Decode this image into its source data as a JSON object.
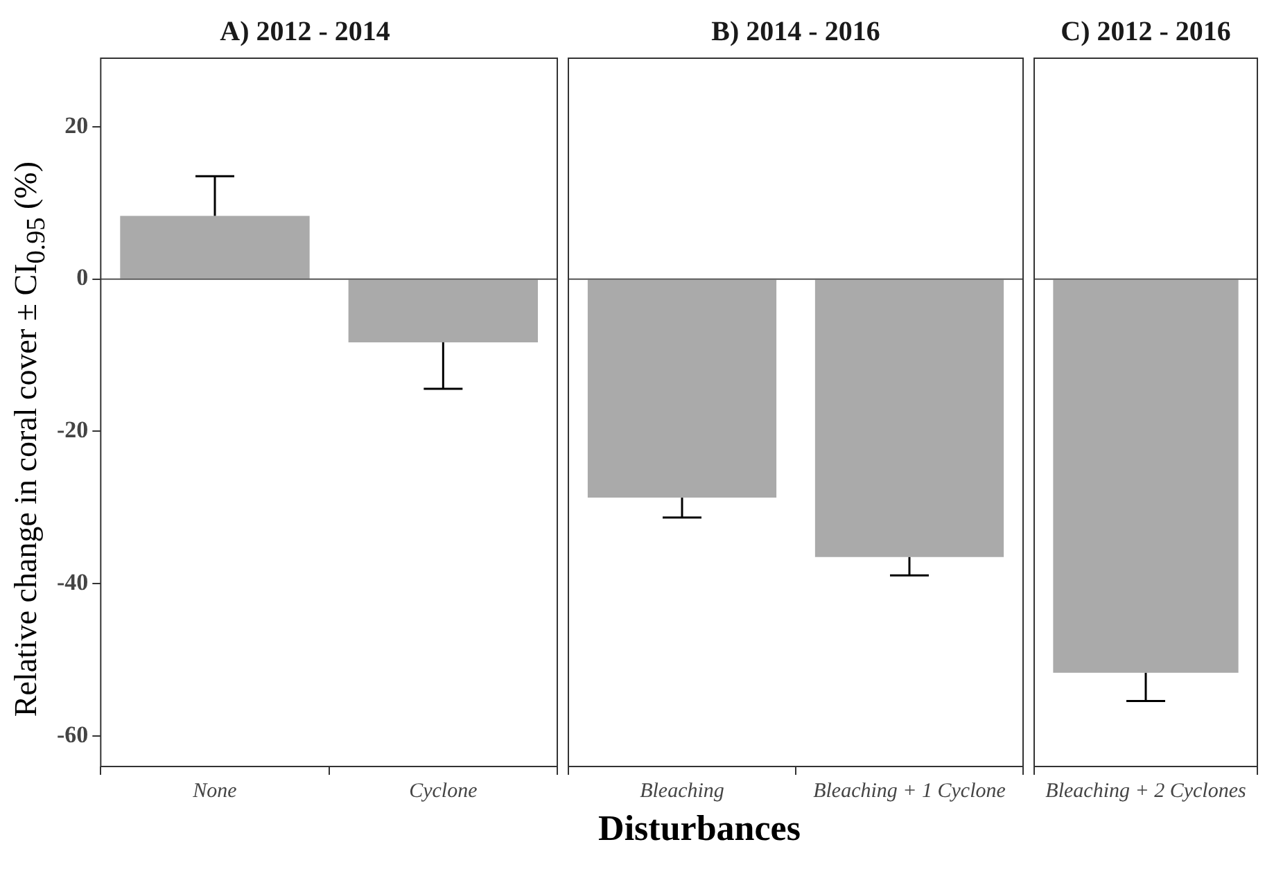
{
  "chart_data": [
    {
      "type": "bar",
      "title": "A) 2012 - 2014",
      "ylabel": "Relative change in coral cover ± CI$_{0.95}$ (%)",
      "categories": [
        "None",
        "Cyclone"
      ],
      "values": [
        8.3,
        -8.3
      ],
      "color": "#aaaaaa",
      "errors": [
        [
          8.3,
          13.5
        ],
        [
          -14.4,
          -8.3
        ]
      ],
      "ylim": [
        -64,
        29
      ],
      "yticks": [
        -60,
        -40,
        -20,
        0,
        20
      ],
      "ref_lines": [
        {
          "axis": "y",
          "value": 0,
          "color": "#555555"
        }
      ]
    },
    {
      "type": "bar",
      "title": "B) 2014 - 2016",
      "xlabel": "Disturbances",
      "categories": [
        "Bleaching",
        "Bleaching + 1 Cyclone"
      ],
      "values": [
        -28.7,
        -36.5
      ],
      "color": "#aaaaaa",
      "errors": [
        [
          -31.3,
          -28.7
        ],
        [
          -38.9,
          -36.5
        ]
      ],
      "ylim": [
        -64,
        29
      ],
      "yticks": [
        -60,
        -40,
        -20,
        0,
        20
      ],
      "tick_labels": "x",
      "ref_lines": [
        {
          "axis": "y",
          "value": 0,
          "color": "#555555"
        }
      ]
    },
    {
      "type": "bar",
      "title": "C) 2012 - 2016",
      "categories": [
        "Bleaching + 2 Cyclones"
      ],
      "values": [
        -51.7
      ],
      "color": "#aaaaaa",
      "errors": [
        [
          -55.4,
          -51.7
        ]
      ],
      "ylim": [
        -64,
        29
      ],
      "yticks": [
        -60,
        -40,
        -20,
        0,
        20
      ],
      "tick_labels": "x",
      "ref_lines": [
        {
          "axis": "y",
          "value": 0,
          "color": "#555555"
        }
      ]
    }
  ]
}
